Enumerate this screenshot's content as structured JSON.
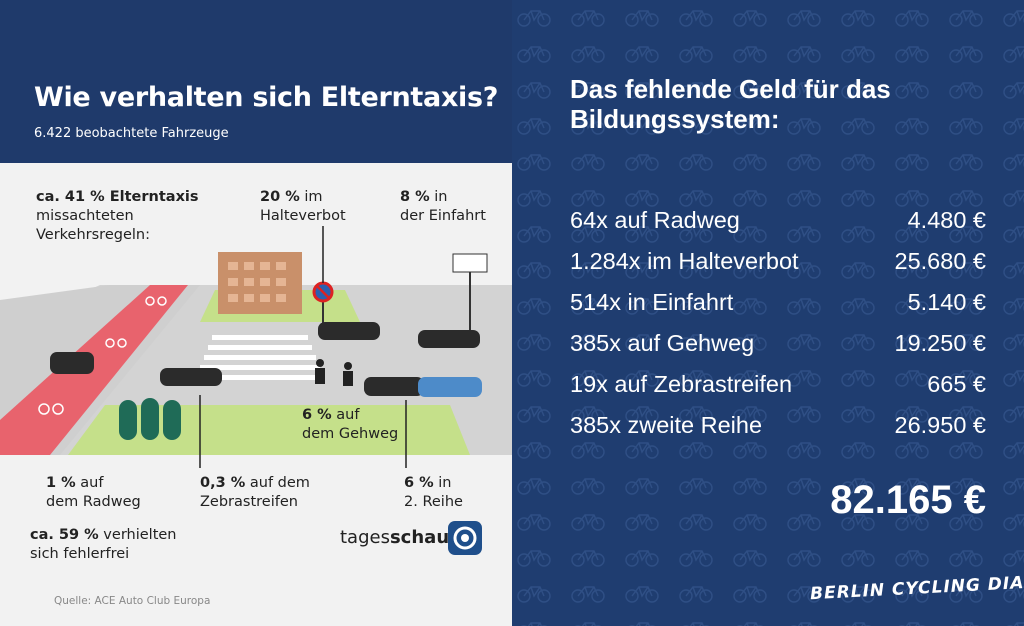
{
  "left": {
    "title": "Wie verhalten sich Elterntaxis?",
    "subtitle": "6.422 beobachtete Fahrzeuge",
    "stat_violations": {
      "bold": "ca. 41 % Elterntaxis",
      "line2": "missachteten",
      "line3": "Verkehrsregeln:"
    },
    "stat_halteverbot": {
      "bold": "20 %",
      "rest": " im",
      "line2": "Halteverbot"
    },
    "stat_einfahrt": {
      "bold": "8 %",
      "rest": " in",
      "line2": "der Einfahrt"
    },
    "stat_gehweg": {
      "bold": "6 %",
      "rest": " auf",
      "line2": "dem Gehweg"
    },
    "stat_radweg": {
      "bold": "1 %",
      "rest": " auf",
      "line2": "dem Radweg"
    },
    "stat_zebra": {
      "bold": "0,3 %",
      "rest": " auf dem",
      "line2": "Zebrastreifen"
    },
    "stat_reihe": {
      "bold": "6 %",
      "rest": " in",
      "line2": "2. Reihe"
    },
    "stat_fehlerfrei": {
      "bold": "ca. 59 %",
      "rest": " verhielten",
      "line2": "sich fehlerfrei"
    },
    "source": "Quelle: ACE Auto Club Europa",
    "logo_text_a": "tages",
    "logo_text_b": "schau"
  },
  "right": {
    "title": "Das fehlende Geld für das Bildungssystem:",
    "fines": [
      {
        "desc": "64x auf Radweg",
        "amount": "4.480 €"
      },
      {
        "desc": "1.284x im Halteverbot",
        "amount": "25.680 €"
      },
      {
        "desc": "514x in Einfahrt",
        "amount": "5.140 €"
      },
      {
        "desc": "385x auf Gehweg",
        "amount": "19.250 €"
      },
      {
        "desc": "19x auf Zebrastreifen",
        "amount": "665 €"
      },
      {
        "desc": "385x zweite Reihe",
        "amount": "26.950 €"
      }
    ],
    "total": "82.165 €",
    "brand": "BERLIN CYCLING DIARY"
  },
  "colors": {
    "header_blue": "#1f3a6b",
    "panel_blue": "#1f3d70",
    "bike_lane_red": "#e8636d",
    "grass_green": "#c5e08a",
    "building_brown": "#c9906a",
    "tree_green": "#1f6b57"
  }
}
